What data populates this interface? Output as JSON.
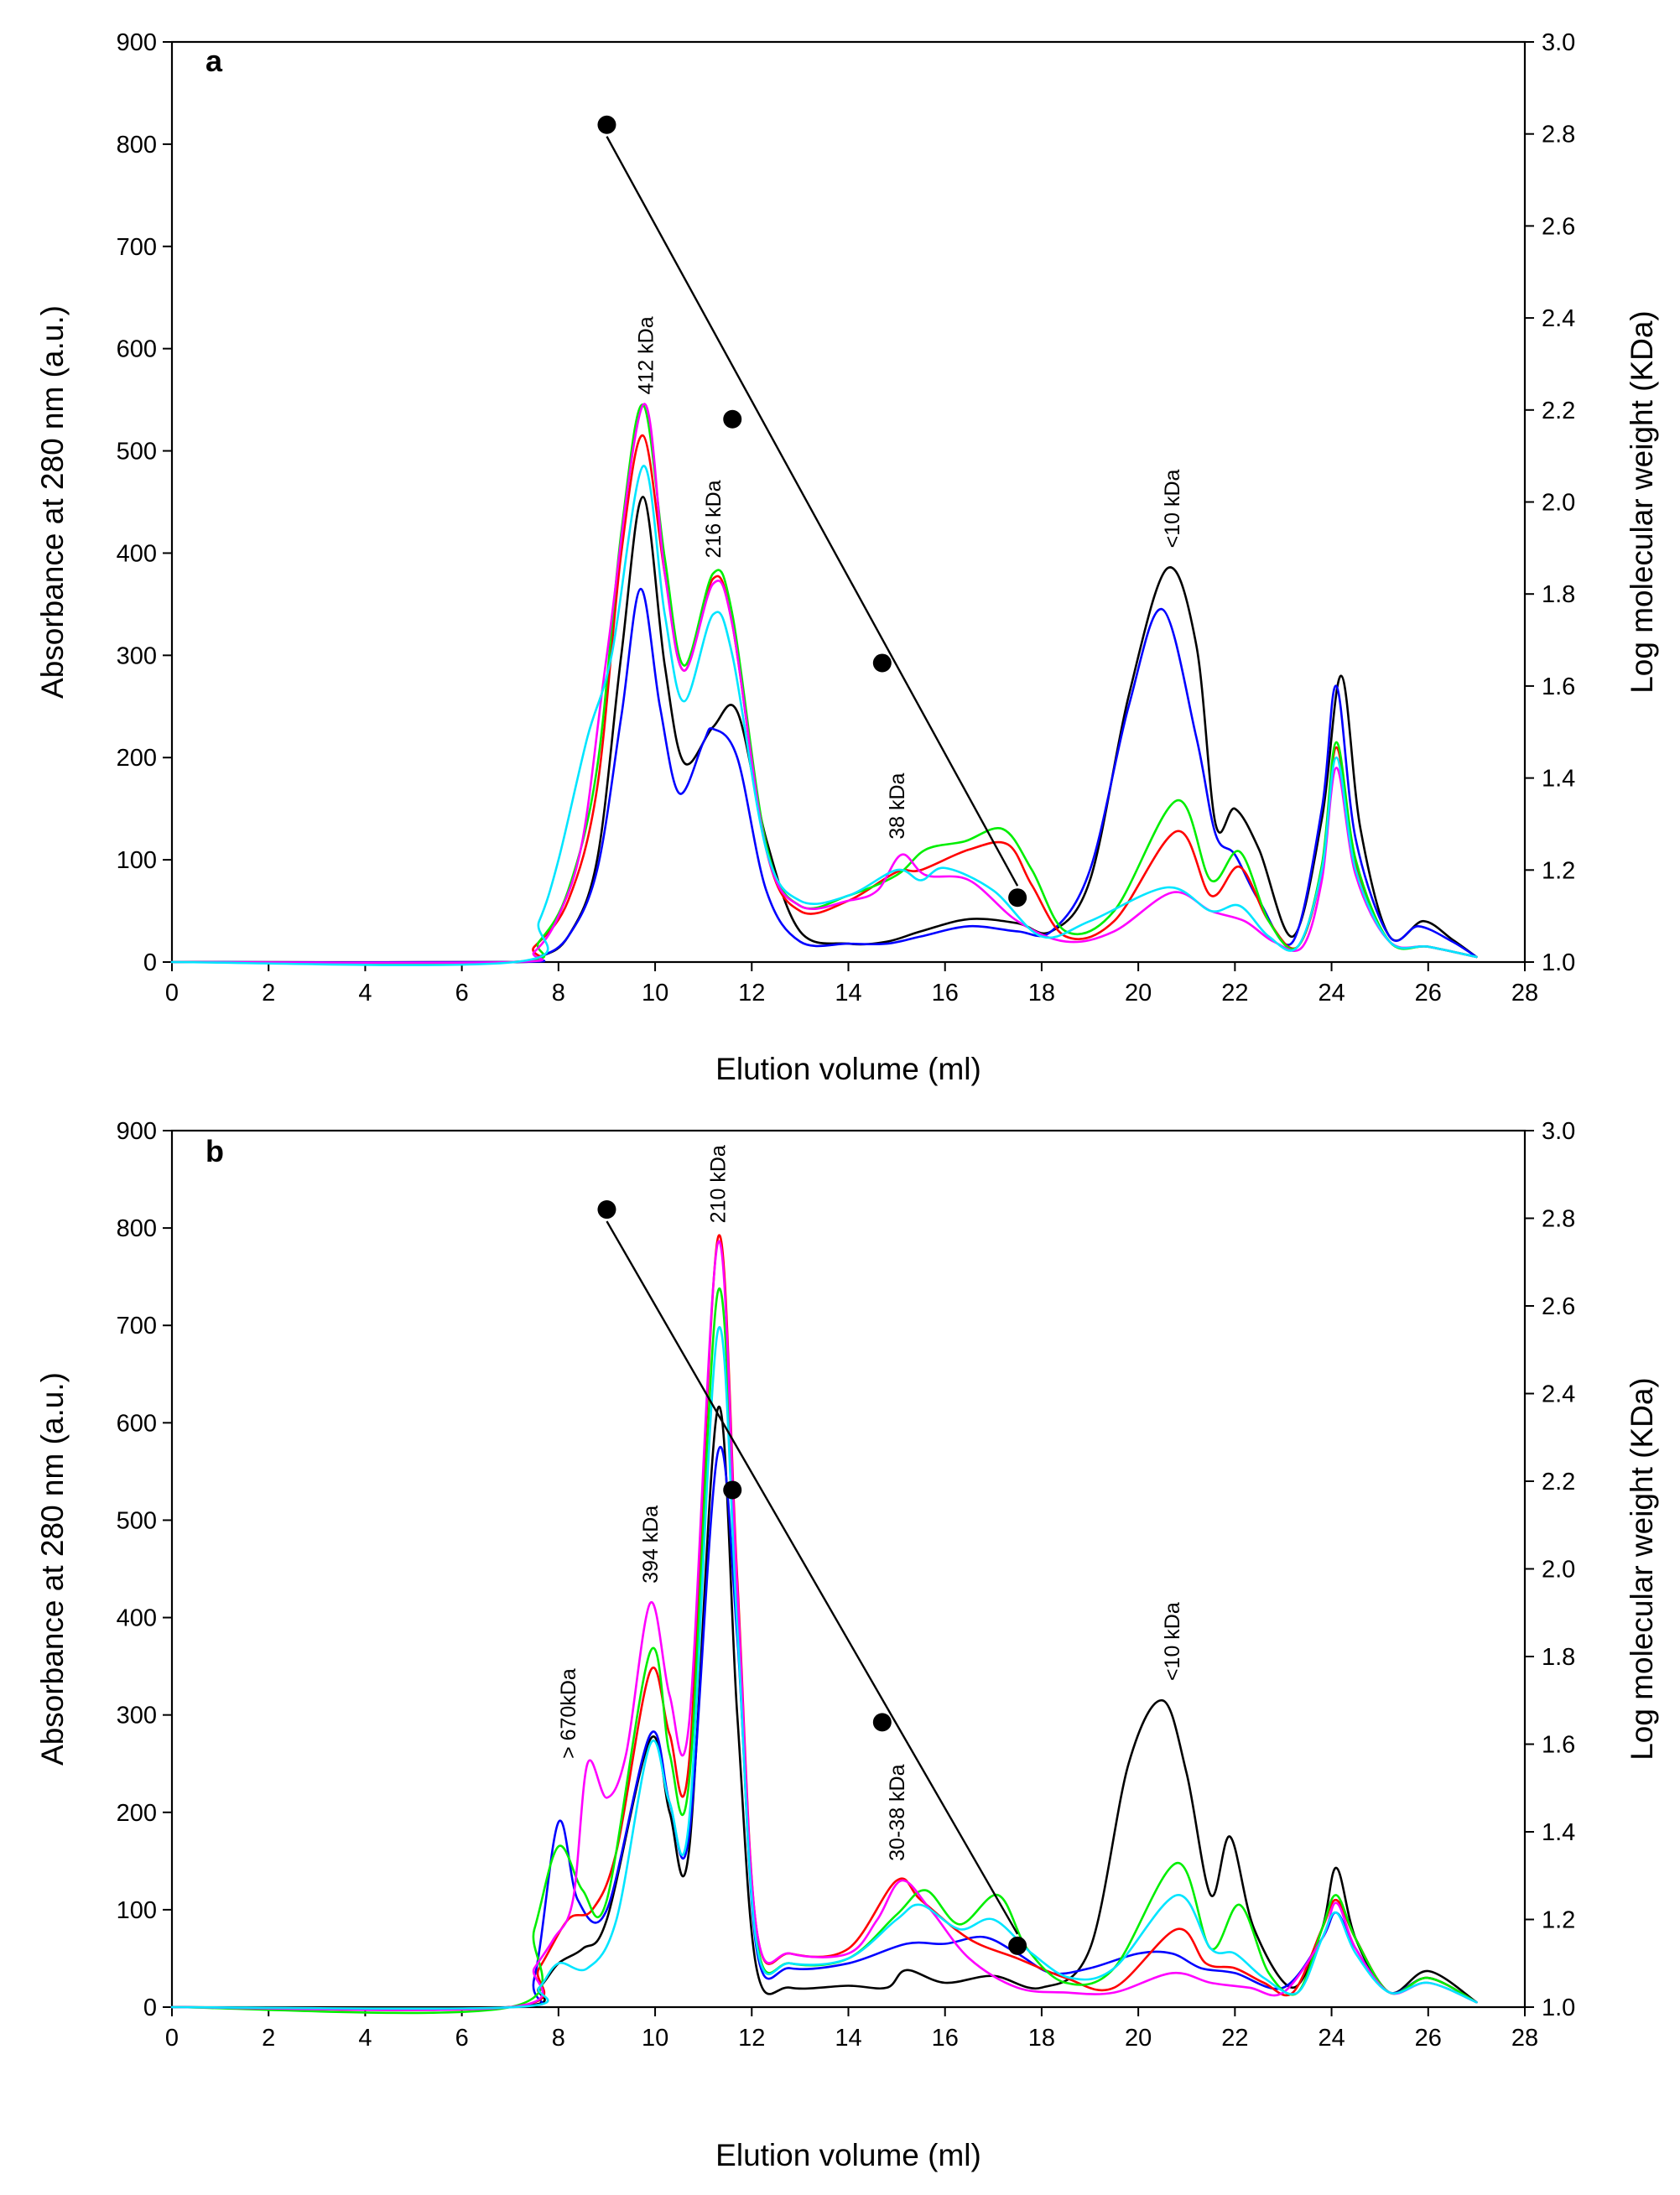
{
  "chart_data": [
    {
      "type": "line",
      "panel_label": "a",
      "xlabel": "Elution volume (ml)",
      "ylabel": "Absorbance at 280 nm (a.u.)",
      "y2label": "Log molecular weight (KDa)",
      "xlim": [
        0,
        28
      ],
      "ylim": [
        0,
        900
      ],
      "y2lim": [
        1.0,
        3.0
      ],
      "xticks": [
        0,
        2,
        4,
        6,
        8,
        10,
        12,
        14,
        16,
        18,
        20,
        22,
        24,
        26,
        28
      ],
      "yticks": [
        0,
        100,
        200,
        300,
        400,
        500,
        600,
        700,
        800,
        900
      ],
      "y2ticks": [
        1.0,
        1.2,
        1.4,
        1.6,
        1.8,
        2.0,
        2.2,
        2.4,
        2.6,
        2.8,
        3.0
      ],
      "annotations": [
        {
          "text": "412 kDa",
          "x": 9.8,
          "y": 555
        },
        {
          "text": "216 kDa",
          "x": 11.2,
          "y": 395
        },
        {
          "text": "38 kDa",
          "x": 15.0,
          "y": 120
        },
        {
          "text": "<10 kDa",
          "x": 20.7,
          "y": 405
        }
      ],
      "calibration": {
        "x": [
          9.0,
          11.6,
          14.7,
          17.5
        ],
        "y2": [
          2.82,
          2.18,
          1.65,
          1.14
        ]
      },
      "series": [
        {
          "name": "black",
          "color": "#000000",
          "x": [
            0,
            7,
            7.6,
            8.2,
            8.8,
            9.3,
            9.75,
            10.2,
            10.6,
            11.2,
            11.7,
            12.3,
            13,
            14,
            14.8,
            15.5,
            16.5,
            17.5,
            18.2,
            19,
            19.8,
            20.6,
            21.2,
            21.6,
            22,
            22.5,
            23.2,
            23.8,
            24.2,
            24.6,
            25.2,
            25.9,
            26.5,
            27
          ],
          "y": [
            0,
            0,
            5,
            25,
            100,
            300,
            455,
            290,
            195,
            230,
            245,
            120,
            30,
            18,
            20,
            30,
            42,
            38,
            30,
            80,
            260,
            385,
            310,
            135,
            150,
            110,
            25,
            140,
            280,
            130,
            25,
            40,
            22,
            5
          ]
        },
        {
          "name": "blue",
          "color": "#0000ff",
          "x": [
            0,
            7,
            7.6,
            8.2,
            8.8,
            9.3,
            9.7,
            10.1,
            10.5,
            11,
            11.2,
            11.7,
            12.3,
            13,
            14,
            14.8,
            15.5,
            16.5,
            17.5,
            18.2,
            19,
            19.8,
            20.5,
            21.2,
            21.6,
            22,
            22.5,
            23.2,
            23.8,
            24.1,
            24.5,
            25.2,
            25.8,
            26.5,
            27
          ],
          "y": [
            0,
            0,
            5,
            25,
            90,
            240,
            365,
            250,
            165,
            215,
            228,
            200,
            70,
            20,
            18,
            18,
            25,
            35,
            30,
            30,
            90,
            250,
            345,
            220,
            125,
            105,
            60,
            20,
            150,
            270,
            120,
            25,
            35,
            20,
            5
          ]
        },
        {
          "name": "red",
          "color": "#ff0000",
          "x": [
            0,
            7,
            7.5,
            8.2,
            8.8,
            9.3,
            9.75,
            10.2,
            10.6,
            11.2,
            11.6,
            12.3,
            13,
            14,
            15,
            15.5,
            16.5,
            17.3,
            17.8,
            18.5,
            19.5,
            20.8,
            21.5,
            22.1,
            22.7,
            23.3,
            23.8,
            24.1,
            24.5,
            25.2,
            26,
            27
          ],
          "y": [
            0,
            0,
            15,
            60,
            170,
            400,
            515,
            380,
            285,
            375,
            330,
            110,
            50,
            60,
            88,
            90,
            110,
            115,
            75,
            25,
            40,
            128,
            65,
            93,
            40,
            15,
            90,
            210,
            95,
            20,
            15,
            5
          ]
        },
        {
          "name": "green",
          "color": "#00ee00",
          "x": [
            0,
            7,
            7.6,
            8.2,
            8.8,
            9.3,
            9.75,
            10.2,
            10.6,
            11.2,
            11.6,
            12.3,
            13,
            14,
            15,
            15.6,
            16.4,
            17.2,
            17.8,
            18.5,
            19.5,
            20.8,
            21.5,
            22.1,
            22.7,
            23.3,
            23.8,
            24.1,
            24.5,
            25.2,
            26,
            27
          ],
          "y": [
            0,
            0,
            20,
            70,
            190,
            420,
            545,
            395,
            290,
            380,
            340,
            115,
            55,
            65,
            85,
            110,
            118,
            130,
            90,
            30,
            50,
            158,
            80,
            108,
            40,
            15,
            95,
            215,
            100,
            20,
            15,
            5
          ]
        },
        {
          "name": "magenta",
          "color": "#ff00ff",
          "x": [
            0,
            7,
            7.5,
            8,
            8.5,
            9,
            9.75,
            10.2,
            10.6,
            11.2,
            11.6,
            12.3,
            13,
            14,
            14.6,
            15.1,
            15.6,
            16.5,
            17.5,
            18.5,
            19.5,
            20.7,
            21.5,
            22.2,
            22.8,
            23.4,
            23.8,
            24.1,
            24.5,
            25.2,
            26,
            27
          ],
          "y": [
            0,
            0,
            10,
            45,
            120,
            300,
            545,
            380,
            285,
            370,
            330,
            110,
            55,
            60,
            70,
            105,
            85,
            80,
            40,
            20,
            30,
            68,
            50,
            40,
            20,
            15,
            80,
            190,
            85,
            20,
            15,
            5
          ]
        },
        {
          "name": "cyan",
          "color": "#00e5ff",
          "x": [
            0,
            7.1,
            7.6,
            8,
            8.6,
            9.1,
            9.75,
            10.2,
            10.6,
            11.2,
            11.6,
            12.3,
            13,
            14,
            15,
            15.5,
            16,
            17,
            18,
            19,
            20.6,
            21.5,
            22.1,
            22.7,
            23.3,
            23.8,
            24.1,
            24.5,
            25.2,
            26,
            27
          ],
          "y": [
            0,
            0,
            40,
            100,
            220,
            300,
            485,
            340,
            255,
            340,
            300,
            110,
            60,
            65,
            90,
            80,
            92,
            70,
            25,
            40,
            73,
            50,
            55,
            25,
            15,
            90,
            200,
            90,
            20,
            15,
            5
          ]
        }
      ]
    },
    {
      "type": "line",
      "panel_label": "b",
      "xlabel": "Elution volume (ml)",
      "ylabel": "Absorbance at 280 nm (a.u.)",
      "y2label": "Log molecular weight (KDa)",
      "xlim": [
        0,
        28
      ],
      "ylim": [
        0,
        900
      ],
      "y2lim": [
        1.0,
        3.0
      ],
      "xticks": [
        0,
        2,
        4,
        6,
        8,
        10,
        12,
        14,
        16,
        18,
        20,
        22,
        24,
        26,
        28
      ],
      "yticks": [
        0,
        100,
        200,
        300,
        400,
        500,
        600,
        700,
        800,
        900
      ],
      "y2ticks": [
        1.0,
        1.2,
        1.4,
        1.6,
        1.8,
        2.0,
        2.2,
        2.4,
        2.6,
        2.8,
        3.0
      ],
      "annotations": [
        {
          "text": "> 670kDa",
          "x": 8.2,
          "y": 255
        },
        {
          "text": "394 kDa",
          "x": 9.9,
          "y": 435
        },
        {
          "text": "210 kDa",
          "x": 11.3,
          "y": 805
        },
        {
          "text": "30-38 kDa",
          "x": 15.0,
          "y": 150
        },
        {
          "text": "<10 kDa",
          "x": 20.7,
          "y": 335
        }
      ],
      "calibration": {
        "x": [
          9.0,
          11.6,
          14.7,
          17.5
        ],
        "y2": [
          2.82,
          2.18,
          1.65,
          1.14
        ]
      },
      "series": [
        {
          "name": "black",
          "color": "#000000",
          "x": [
            0,
            7,
            7.6,
            8,
            8.5,
            9,
            9.9,
            10.3,
            10.7,
            11.3,
            11.7,
            12.1,
            12.8,
            14,
            14.8,
            15.2,
            16,
            17,
            18,
            19,
            19.8,
            20.5,
            21,
            21.5,
            21.9,
            22.4,
            23.2,
            23.8,
            24.1,
            24.5,
            25.2,
            26,
            27
          ],
          "y": [
            0,
            0,
            20,
            45,
            60,
            90,
            275,
            200,
            160,
            615,
            300,
            40,
            20,
            22,
            20,
            38,
            25,
            32,
            20,
            60,
            250,
            315,
            240,
            115,
            175,
            80,
            20,
            80,
            143,
            70,
            15,
            37,
            5
          ]
        },
        {
          "name": "blue",
          "color": "#0000ff",
          "x": [
            0,
            7,
            7.5,
            8,
            8.4,
            9,
            9.9,
            10.3,
            10.7,
            11.3,
            11.7,
            12.1,
            12.8,
            14,
            15.2,
            16,
            16.8,
            17.5,
            18.2,
            19,
            20,
            20.7,
            21.3,
            22,
            23,
            23.8,
            24.1,
            24.5,
            25.2,
            26,
            27
          ],
          "y": [
            0,
            0,
            30,
            190,
            110,
            100,
            280,
            210,
            175,
            570,
            380,
            60,
            40,
            45,
            65,
            65,
            72,
            55,
            35,
            40,
            55,
            55,
            40,
            35,
            20,
            70,
            97,
            60,
            15,
            30,
            5
          ]
        },
        {
          "name": "red",
          "color": "#ff0000",
          "x": [
            0,
            7,
            7.6,
            8.2,
            8.7,
            9.2,
            9.9,
            10.3,
            10.7,
            11.3,
            11.7,
            12.1,
            12.8,
            14,
            15,
            15.5,
            16.5,
            17.5,
            18.5,
            19.5,
            20.8,
            21.4,
            22,
            22.6,
            23.2,
            23.8,
            24.1,
            24.5,
            25.2,
            26,
            27
          ],
          "y": [
            0,
            0,
            40,
            90,
            100,
            160,
            345,
            280,
            250,
            790,
            440,
            80,
            55,
            60,
            130,
            110,
            70,
            50,
            30,
            20,
            80,
            45,
            40,
            25,
            15,
            80,
            110,
            70,
            15,
            30,
            5
          ]
        },
        {
          "name": "green",
          "color": "#00ee00",
          "x": [
            0,
            7,
            7.5,
            8,
            8.5,
            9,
            9.9,
            10.3,
            10.7,
            11.3,
            11.7,
            12.1,
            12.8,
            14,
            15,
            15.6,
            16.3,
            17.1,
            17.7,
            18.5,
            19.5,
            20.8,
            21.5,
            22.1,
            22.7,
            23.3,
            23.8,
            24.1,
            24.5,
            25.2,
            26,
            27
          ],
          "y": [
            0,
            0,
            80,
            165,
            120,
            110,
            365,
            260,
            230,
            735,
            420,
            70,
            45,
            50,
            95,
            120,
            85,
            115,
            60,
            25,
            40,
            148,
            60,
            105,
            35,
            15,
            80,
            115,
            70,
            15,
            30,
            5
          ]
        },
        {
          "name": "magenta",
          "color": "#ff00ff",
          "x": [
            0,
            7,
            7.5,
            7.9,
            8.3,
            8.6,
            9,
            9.4,
            9.9,
            10.3,
            10.7,
            11.3,
            11.7,
            12.1,
            12.8,
            14,
            14.6,
            15.1,
            15.7,
            16.5,
            17.5,
            18.5,
            19.5,
            20.7,
            21.5,
            22.3,
            23,
            23.8,
            24.1,
            24.5,
            25.2,
            26,
            27
          ],
          "y": [
            0,
            0,
            40,
            70,
            110,
            250,
            215,
            260,
            415,
            320,
            290,
            785,
            430,
            80,
            55,
            55,
            90,
            130,
            100,
            50,
            20,
            15,
            15,
            35,
            25,
            20,
            15,
            70,
            107,
            60,
            15,
            25,
            5
          ]
        },
        {
          "name": "cyan",
          "color": "#00e5ff",
          "x": [
            0,
            7.1,
            7.6,
            8,
            8.6,
            9.2,
            9.9,
            10.3,
            10.7,
            11.3,
            11.7,
            12.1,
            12.8,
            14,
            15,
            15.5,
            16.3,
            17,
            17.8,
            18.6,
            19.5,
            20.8,
            21.5,
            22,
            22.6,
            23.3,
            23.8,
            24.1,
            24.5,
            25.2,
            26,
            27
          ],
          "y": [
            0,
            0,
            20,
            45,
            40,
            90,
            270,
            210,
            190,
            695,
            390,
            65,
            45,
            50,
            90,
            105,
            80,
            90,
            55,
            30,
            40,
            115,
            60,
            55,
            30,
            15,
            70,
            97,
            55,
            15,
            25,
            5
          ]
        }
      ]
    }
  ]
}
